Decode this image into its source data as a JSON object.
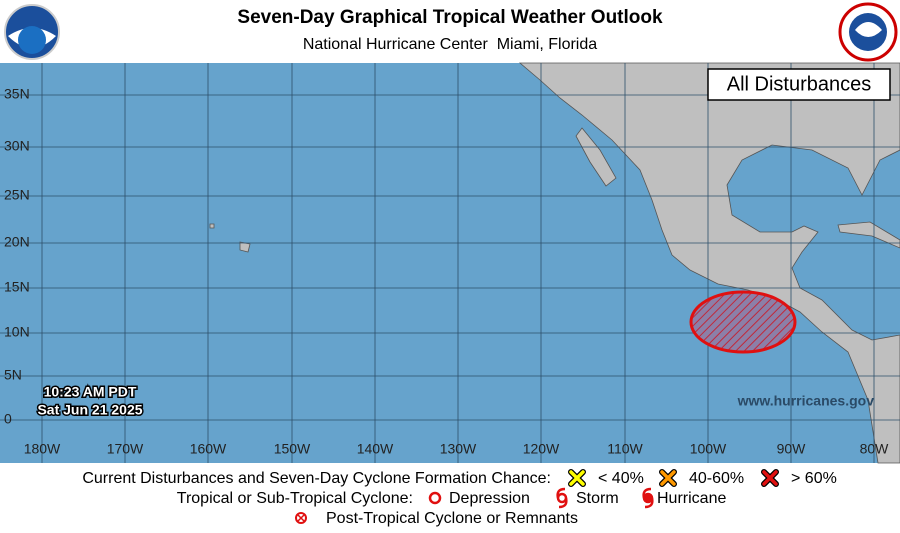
{
  "header": {
    "title": "Seven-Day Graphical Tropical Weather Outlook",
    "subtitle": "National Hurricane Center  Miami, Florida"
  },
  "map": {
    "panel_label": "All Disturbances",
    "lat_labels": [
      "35N",
      "30N",
      "25N",
      "20N",
      "15N",
      "10N",
      "5N",
      "0"
    ],
    "lon_labels": [
      "180W",
      "170W",
      "160W",
      "150W",
      "140W",
      "130W",
      "120W",
      "110W",
      "100W",
      "90W",
      "80W"
    ],
    "timestamp": [
      "10:23 AM PDT",
      "Sat Jun 21 2025"
    ],
    "website": "www.hurricanes.gov"
  },
  "legend": {
    "formation_title": "Current Disturbances and Seven-Day Cyclone Formation Chance:",
    "chances": [
      "< 40%",
      "40-60%",
      "> 60%"
    ],
    "cyclone_title": "Tropical or Sub-Tropical Cyclone:",
    "cyclones": [
      "Depression",
      "Storm",
      "Hurricane"
    ],
    "post_tropical": "Post-Tropical Cyclone or Remnants"
  }
}
